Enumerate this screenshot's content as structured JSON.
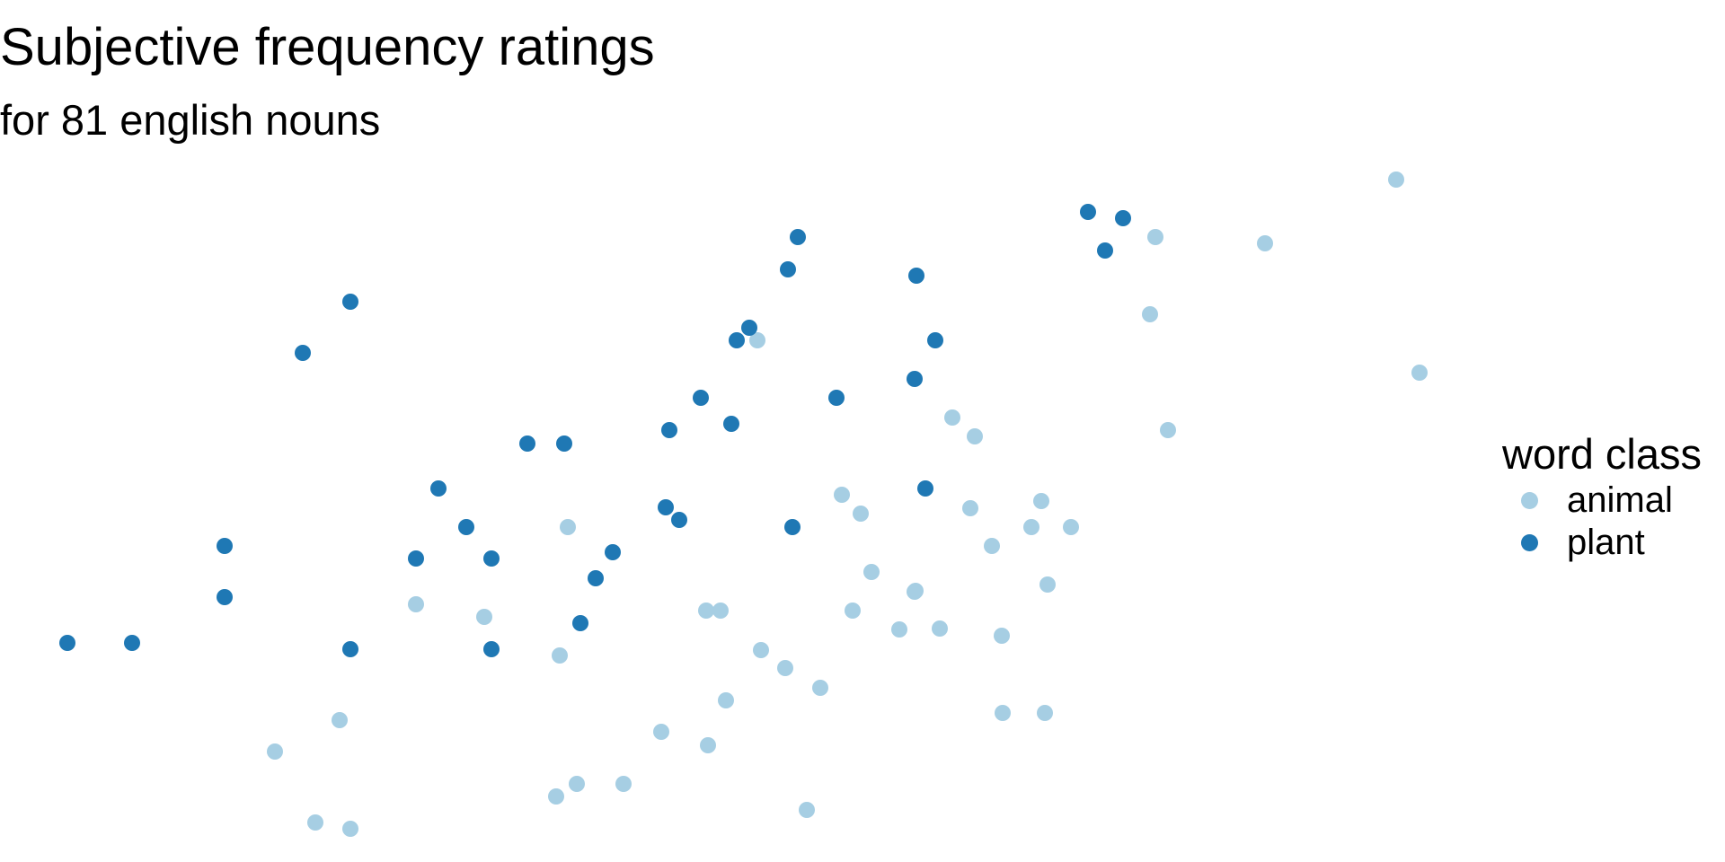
{
  "chart_data": {
    "type": "scatter",
    "title": "Subjective frequency ratings",
    "subtitle": "for 81 english nouns",
    "xlabel": "",
    "ylabel": "",
    "grid": false,
    "axes_visible": false,
    "legend": {
      "title": "word class",
      "placement": "right"
    },
    "series": [
      {
        "name": "animal",
        "color": "#a6cee3",
        "points": [
          [
            1554,
            200
          ],
          [
            1286,
            264
          ],
          [
            1408,
            271
          ],
          [
            1280,
            350
          ],
          [
            1580,
            415
          ],
          [
            843,
            379
          ],
          [
            1300,
            479
          ],
          [
            1060,
            465
          ],
          [
            1085,
            486
          ],
          [
            1159,
            558
          ],
          [
            632,
            587
          ],
          [
            937,
            551
          ],
          [
            958,
            572
          ],
          [
            1192,
            587
          ],
          [
            1080,
            566
          ],
          [
            1148,
            587
          ],
          [
            1104,
            608
          ],
          [
            1166,
            651
          ],
          [
            970,
            637
          ],
          [
            1019,
            658
          ],
          [
            1018,
            659
          ],
          [
            1046,
            700
          ],
          [
            1115,
            708
          ],
          [
            463,
            673
          ],
          [
            539,
            687
          ],
          [
            949,
            680
          ],
          [
            1001,
            701
          ],
          [
            1116,
            794
          ],
          [
            786,
            680
          ],
          [
            802,
            680
          ],
          [
            847,
            724
          ],
          [
            874,
            744
          ],
          [
            623,
            730
          ],
          [
            913,
            766
          ],
          [
            378,
            802
          ],
          [
            1163,
            794
          ],
          [
            306,
            837
          ],
          [
            808,
            780
          ],
          [
            736,
            815
          ],
          [
            788,
            830
          ],
          [
            642,
            873
          ],
          [
            694,
            873
          ],
          [
            898,
            902
          ],
          [
            619,
            887
          ],
          [
            351,
            916
          ],
          [
            390,
            923
          ]
        ]
      },
      {
        "name": "plant",
        "color": "#1f78b4",
        "points": [
          [
            1211,
            236
          ],
          [
            1250,
            243
          ],
          [
            1230,
            279
          ],
          [
            888,
            264
          ],
          [
            877,
            300
          ],
          [
            1020,
            307
          ],
          [
            390,
            336
          ],
          [
            834,
            365
          ],
          [
            820,
            379
          ],
          [
            1041,
            379
          ],
          [
            337,
            393
          ],
          [
            1018,
            422
          ],
          [
            780,
            443
          ],
          [
            931,
            443
          ],
          [
            814,
            472
          ],
          [
            745,
            479
          ],
          [
            587,
            494
          ],
          [
            628,
            494
          ],
          [
            488,
            544
          ],
          [
            1030,
            544
          ],
          [
            741,
            565
          ],
          [
            756,
            579
          ],
          [
            519,
            587
          ],
          [
            882,
            587
          ],
          [
            250,
            608
          ],
          [
            463,
            622
          ],
          [
            547,
            622
          ],
          [
            682,
            615
          ],
          [
            663,
            644
          ],
          [
            250,
            665
          ],
          [
            646,
            694
          ],
          [
            75,
            716
          ],
          [
            147,
            716
          ],
          [
            390,
            723
          ],
          [
            547,
            723
          ]
        ]
      }
    ]
  }
}
